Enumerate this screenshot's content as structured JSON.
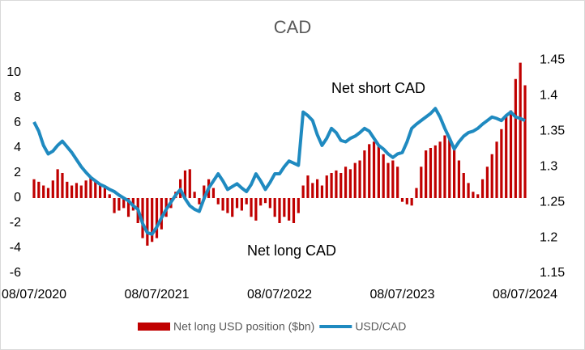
{
  "chart_data": {
    "type": "bar-line",
    "title": "CAD",
    "annotations": [
      "Net short CAD",
      "Net long CAD"
    ],
    "categories": [
      "08/07/2020",
      null,
      null,
      null,
      null,
      null,
      null,
      null,
      null,
      null,
      null,
      null,
      null,
      null,
      null,
      null,
      null,
      null,
      null,
      null,
      null,
      null,
      null,
      null,
      null,
      null,
      "08/07/2021",
      null,
      null,
      null,
      null,
      null,
      null,
      null,
      null,
      null,
      null,
      null,
      null,
      null,
      null,
      null,
      null,
      null,
      null,
      null,
      null,
      null,
      null,
      null,
      null,
      null,
      "08/07/2022",
      null,
      null,
      null,
      null,
      null,
      null,
      null,
      null,
      null,
      null,
      null,
      null,
      null,
      null,
      null,
      null,
      null,
      null,
      null,
      null,
      null,
      null,
      null,
      null,
      null,
      "08/07/2023",
      null,
      null,
      null,
      null,
      null,
      null,
      null,
      null,
      null,
      null,
      null,
      null,
      null,
      null,
      null,
      null,
      null,
      null,
      null,
      null,
      null,
      null,
      null,
      null,
      null,
      "08/07/2024"
    ],
    "series": [
      {
        "name": "Net long USD position ($bn)",
        "type": "bar",
        "color": "#c00000",
        "values": [
          1.5,
          1.3,
          1.0,
          0.8,
          1.4,
          2.3,
          2.0,
          1.3,
          1.0,
          1.2,
          1.0,
          1.4,
          1.6,
          1.3,
          1.0,
          0.8,
          0.3,
          -1.2,
          -1.0,
          -0.8,
          -1.5,
          -1.0,
          -2.0,
          -3.2,
          -3.8,
          -3.5,
          -3.2,
          -2.5,
          -1.5,
          -0.8,
          0.5,
          1.5,
          2.2,
          2.3,
          0.5,
          -0.5,
          1.0,
          1.5,
          0.8,
          -0.5,
          -1.0,
          -1.2,
          -1.5,
          -0.8,
          -1.0,
          -0.5,
          -1.5,
          -1.8,
          -0.6,
          -0.4,
          -0.8,
          -1.5,
          -2.0,
          -1.5,
          -1.8,
          -2.0,
          -1.2,
          1.0,
          1.8,
          1.2,
          1.5,
          1.0,
          1.8,
          2.0,
          2.2,
          2.0,
          2.5,
          2.3,
          2.8,
          3.0,
          3.8,
          4.3,
          4.5,
          4.2,
          3.5,
          2.8,
          3.0,
          2.5,
          -0.3,
          -0.5,
          -0.6,
          0.8,
          2.5,
          3.8,
          4.0,
          4.2,
          4.5,
          5.0,
          4.8,
          4.0,
          3.0,
          2.0,
          1.2,
          0.5,
          0.3,
          1.5,
          2.5,
          3.5,
          4.5,
          5.5,
          6.5,
          7.0,
          9.5,
          10.8,
          9.0
        ]
      },
      {
        "name": "USD/CAD",
        "type": "line",
        "axis": "y2",
        "color": "#1f8ac0",
        "values": [
          1.363,
          1.35,
          1.33,
          1.318,
          1.322,
          1.33,
          1.336,
          1.328,
          1.32,
          1.31,
          1.3,
          1.292,
          1.285,
          1.28,
          1.275,
          1.272,
          1.268,
          1.265,
          1.26,
          1.256,
          1.252,
          1.245,
          1.24,
          1.22,
          1.207,
          1.205,
          1.215,
          1.228,
          1.24,
          1.25,
          1.26,
          1.268,
          1.255,
          1.245,
          1.24,
          1.237,
          1.255,
          1.27,
          1.28,
          1.29,
          1.28,
          1.268,
          1.272,
          1.276,
          1.27,
          1.265,
          1.275,
          1.29,
          1.28,
          1.268,
          1.278,
          1.29,
          1.29,
          1.3,
          1.308,
          1.305,
          1.302,
          1.377,
          1.372,
          1.365,
          1.345,
          1.33,
          1.34,
          1.354,
          1.348,
          1.337,
          1.335,
          1.34,
          1.343,
          1.348,
          1.354,
          1.35,
          1.34,
          1.33,
          1.325,
          1.318,
          1.313,
          1.318,
          1.32,
          1.335,
          1.354,
          1.36,
          1.365,
          1.37,
          1.375,
          1.382,
          1.37,
          1.354,
          1.34,
          1.325,
          1.335,
          1.343,
          1.348,
          1.35,
          1.354,
          1.36,
          1.365,
          1.37,
          1.368,
          1.365,
          1.372,
          1.377,
          1.37,
          1.368,
          1.365
        ]
      }
    ],
    "ylim": [
      -6,
      11
    ],
    "yticks": [
      -6,
      -4,
      -2,
      0,
      2,
      4,
      6,
      8,
      10
    ],
    "y2lim": [
      1.15,
      1.45
    ],
    "y2ticks": [
      1.15,
      1.2,
      1.25,
      1.3,
      1.35,
      1.4,
      1.45
    ],
    "legend": "bottom"
  }
}
